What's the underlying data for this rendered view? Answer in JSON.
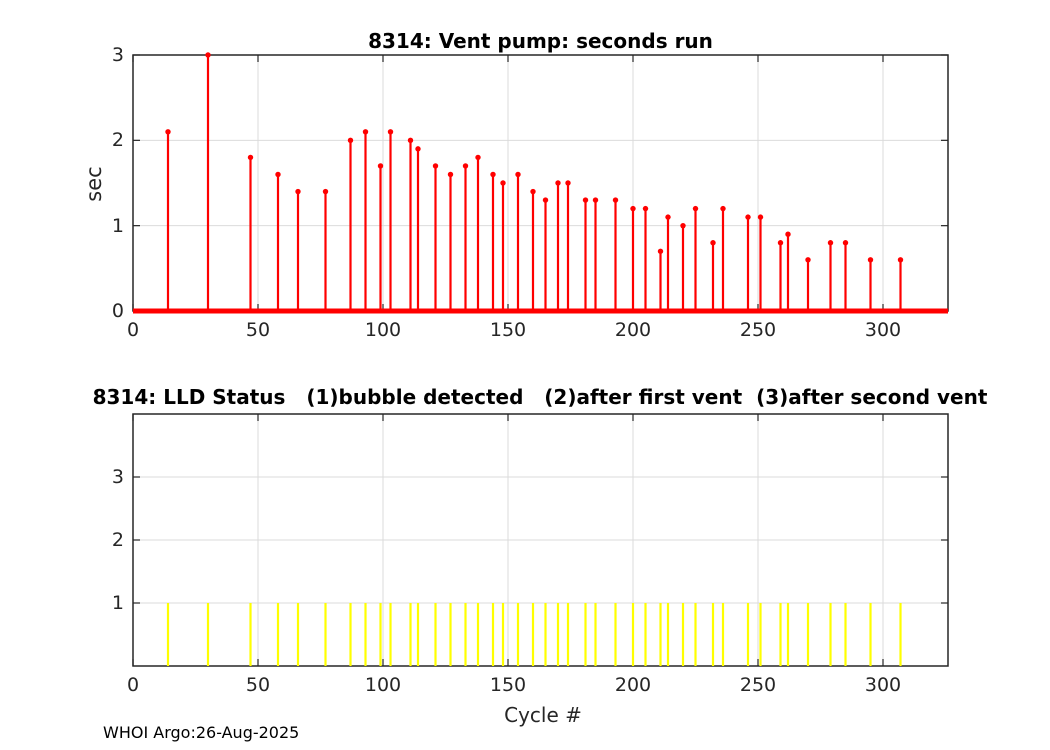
{
  "figure": {
    "footer": "WHOI Argo:26-Aug-2025",
    "background_color": "#FFFFFF",
    "axis_color": "#262626",
    "grid_color": "#DBDBDB",
    "tick_label_color": "#262626",
    "title_color": "#000000"
  },
  "chart_data": [
    {
      "type": "stem",
      "title": "8314: Vent pump: seconds run",
      "ylabel": "sec",
      "xlabel": "",
      "xlim": [
        0,
        326
      ],
      "ylim": [
        0,
        3
      ],
      "xticks": [
        0,
        50,
        100,
        150,
        200,
        250,
        300
      ],
      "yticks": [
        0,
        1,
        2,
        3
      ],
      "grid": true,
      "stem_color": "#FF0000",
      "marker": true,
      "zero_baseline": true,
      "x": [
        14,
        30,
        47,
        58,
        66,
        77,
        87,
        93,
        99,
        103,
        111,
        114,
        121,
        127,
        133,
        138,
        144,
        148,
        154,
        160,
        165,
        170,
        174,
        181,
        185,
        193,
        200,
        205,
        211,
        214,
        220,
        225,
        232,
        236,
        246,
        251,
        259,
        262,
        270,
        279,
        285,
        295,
        307
      ],
      "y": [
        2.1,
        3.0,
        1.8,
        1.6,
        1.4,
        1.4,
        2.0,
        2.1,
        1.7,
        2.1,
        2.0,
        1.9,
        1.7,
        1.6,
        1.7,
        1.8,
        1.6,
        1.5,
        1.6,
        1.4,
        1.3,
        1.5,
        1.5,
        1.3,
        1.3,
        1.3,
        1.2,
        1.2,
        0.7,
        1.1,
        1.0,
        1.2,
        0.8,
        1.2,
        1.1,
        1.1,
        0.8,
        0.9,
        0.6,
        0.8,
        0.8,
        0.6,
        0.6
      ]
    },
    {
      "type": "stem",
      "title": "8314: LLD Status   (1)bubble detected   (2)after first vent  (3)after second vent",
      "ylabel": "",
      "xlabel": "Cycle #",
      "xlim": [
        0,
        326
      ],
      "ylim": [
        0,
        4
      ],
      "xticks": [
        0,
        50,
        100,
        150,
        200,
        250,
        300
      ],
      "yticks": [
        1,
        2,
        3
      ],
      "grid": true,
      "stem_color": "#FFFF00",
      "marker": false,
      "zero_baseline": false,
      "x": [
        14,
        30,
        47,
        58,
        66,
        77,
        87,
        93,
        99,
        103,
        111,
        114,
        121,
        127,
        133,
        138,
        144,
        148,
        154,
        160,
        165,
        170,
        174,
        181,
        185,
        193,
        200,
        205,
        211,
        214,
        220,
        225,
        232,
        236,
        246,
        251,
        259,
        262,
        270,
        279,
        285,
        295,
        307
      ],
      "y": [
        1,
        1,
        1,
        1,
        1,
        1,
        1,
        1,
        1,
        1,
        1,
        1,
        1,
        1,
        1,
        1,
        1,
        1,
        1,
        1,
        1,
        1,
        1,
        1,
        1,
        1,
        1,
        1,
        1,
        1,
        1,
        1,
        1,
        1,
        1,
        1,
        1,
        1,
        1,
        1,
        1,
        1,
        1
      ]
    }
  ]
}
